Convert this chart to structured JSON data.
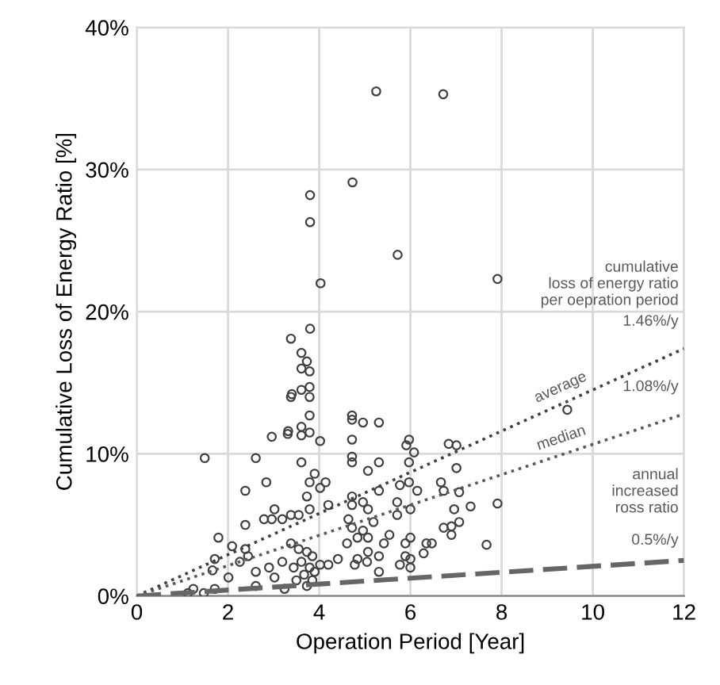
{
  "chart_data": {
    "type": "scatter",
    "xlabel": "Operation Period [Year]",
    "ylabel": "Cumulative Loss of Energy Ratio [%]",
    "xlim": [
      0,
      12
    ],
    "ylim": [
      0,
      40
    ],
    "xticks": [
      0,
      2,
      4,
      6,
      8,
      10,
      12
    ],
    "yticks": [
      {
        "value": 0,
        "label": "0%"
      },
      {
        "value": 10,
        "label": "10%"
      },
      {
        "value": 20,
        "label": "20%"
      },
      {
        "value": 30,
        "label": "30%"
      },
      {
        "value": 40,
        "label": "40%"
      }
    ],
    "grid": true,
    "legend": false,
    "series": [
      {
        "color": "#404040",
        "marker": "circle",
        "x": [
          5.25,
          6.72,
          4.73,
          3.8,
          3.8,
          5.72,
          4.03,
          7.91,
          9.44,
          7.91,
          7.67,
          7.32,
          7.01,
          6.84,
          7.01,
          7.07,
          6.96,
          7.07,
          6.9,
          6.9,
          3.8,
          3.38,
          3.61,
          3.73,
          3.79,
          3.61,
          3.79,
          3.61,
          3.38,
          3.79,
          3.79,
          4.72,
          4.72,
          4.96,
          5.31,
          3.32,
          3.61,
          3.61,
          3.79,
          4.02,
          4.72,
          3.61,
          4.72,
          4.72,
          5.07,
          5.31,
          5.97,
          5.91,
          6.08,
          5.97,
          3.9,
          3.79,
          4.14,
          4.02,
          3.73,
          4.2,
          3.38,
          3.55,
          3.79,
          4.72,
          4.72,
          4.96,
          5.07,
          5.31,
          5.71,
          5.77,
          5.97,
          6.15,
          5.71,
          6.0,
          6.67,
          6.73,
          6.73,
          4.64,
          4.72,
          4.96,
          5.19,
          4.84,
          5.07,
          5.42,
          5.54,
          4.61,
          4.84,
          5.07,
          5.31,
          5.89,
          6.0,
          5.89,
          6.0,
          6.35,
          6.47,
          6.29,
          4.78,
          5.31,
          5.77,
          6.0,
          5.05,
          4.41,
          4.2,
          3.38,
          3.55,
          3.73,
          3.85,
          3.61,
          3.79,
          3.9,
          3.67,
          3.5,
          3.73,
          4.02,
          3.44,
          3.85,
          3.4,
          3.31,
          2.96,
          1.49,
          2.61,
          2.38,
          2.84,
          2.38,
          3.02,
          2.79,
          2.96,
          3.19,
          1.79,
          2.09,
          2.38,
          2.44,
          2.26,
          1.71,
          1.66,
          2.01,
          1.71,
          1.47,
          1.24,
          1.12,
          2.61,
          2.61,
          2.9,
          3.02,
          3.19,
          3.24
        ],
        "values": [
          35.5,
          35.3,
          29.1,
          28.2,
          26.3,
          24.0,
          22.0,
          22.3,
          13.1,
          6.5,
          3.6,
          6.3,
          10.6,
          10.7,
          9.0,
          7.3,
          6.1,
          5.2,
          4.9,
          4.3,
          18.8,
          18.1,
          17.1,
          16.5,
          15.8,
          16.0,
          14.7,
          14.5,
          14.0,
          14.0,
          12.7,
          12.7,
          12.4,
          12.2,
          12.2,
          11.6,
          11.9,
          11.3,
          11.5,
          10.9,
          11.0,
          9.4,
          9.8,
          9.4,
          8.8,
          9.4,
          11.0,
          10.6,
          10.1,
          9.4,
          8.6,
          8.0,
          8.0,
          7.6,
          7.0,
          6.4,
          5.7,
          5.7,
          6.1,
          7.0,
          6.4,
          6.6,
          6.1,
          7.4,
          6.6,
          7.8,
          8.0,
          7.4,
          5.7,
          6.1,
          8.0,
          7.4,
          4.8,
          5.4,
          4.8,
          4.6,
          5.2,
          4.1,
          4.1,
          3.7,
          4.3,
          3.7,
          2.6,
          3.1,
          2.8,
          3.7,
          4.1,
          2.8,
          2.6,
          3.7,
          3.7,
          3.0,
          2.2,
          1.7,
          2.2,
          2.0,
          2.4,
          2.6,
          2.2,
          3.7,
          3.3,
          3.1,
          2.8,
          2.4,
          2.0,
          1.7,
          1.5,
          1.1,
          0.7,
          2.2,
          2.0,
          1.1,
          14.2,
          11.4,
          11.2,
          9.7,
          9.7,
          7.4,
          8.0,
          5.0,
          6.1,
          5.4,
          5.4,
          5.4,
          4.1,
          3.5,
          3.3,
          2.8,
          2.4,
          2.6,
          1.8,
          1.3,
          0.5,
          0.2,
          0.5,
          0.2,
          1.7,
          0.7,
          2.0,
          1.3,
          2.4,
          0.5
        ]
      },
      {
        "type": "line",
        "name": "average",
        "color": "#404040",
        "line_style": "dotted",
        "x": [
          0,
          12
        ],
        "values": [
          0,
          17.4
        ]
      },
      {
        "type": "line",
        "name": "median",
        "color": "#595959",
        "line_style": "dotted",
        "x": [
          0,
          12
        ],
        "values": [
          0,
          12.8
        ]
      },
      {
        "type": "line",
        "color": "#666666",
        "line_style": "dashed",
        "x": [
          0,
          12
        ],
        "values": [
          0,
          2.5
        ]
      }
    ],
    "annotations": [
      "cumulative\nloss of energy ratio\nper oepration period",
      "1.46%/y",
      "1.08%/y",
      "annual\nincreased\nross ratio",
      "0.5%/y"
    ]
  }
}
